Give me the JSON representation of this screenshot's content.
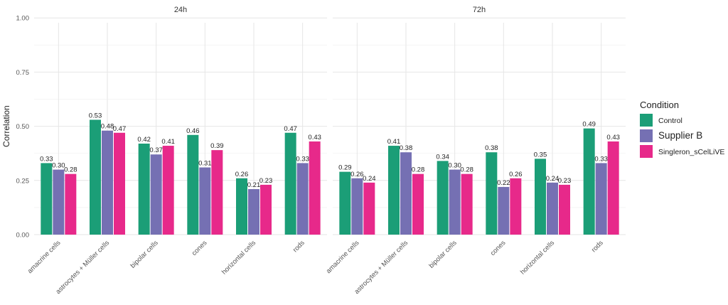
{
  "chart_data": {
    "type": "bar",
    "ylabel": "Correlation",
    "ylim": [
      0,
      1.05
    ],
    "yticks": [
      0.0,
      0.25,
      0.5,
      0.75,
      1.0
    ],
    "ytick_labels": [
      "0.00",
      "0.25",
      "0.50",
      "0.75",
      "1.00"
    ],
    "categories": [
      "amacrine cells",
      "astrocytes + Müller cells",
      "bipolar cells",
      "cones",
      "horizontal cells",
      "rods"
    ],
    "legend": {
      "title": "Condition",
      "entries": [
        "Control",
        "Supplier B",
        "Singleron_sCelLiVE"
      ]
    },
    "colors": [
      "#1b9e77",
      "#7570b3",
      "#e7298a"
    ],
    "panels": [
      {
        "title": "24h",
        "series": [
          {
            "name": "Control",
            "values": [
              0.33,
              0.53,
              0.42,
              0.46,
              0.26,
              0.47
            ]
          },
          {
            "name": "Supplier B",
            "values": [
              0.3,
              0.48,
              0.37,
              0.31,
              0.21,
              0.33
            ]
          },
          {
            "name": "Singleron_sCelLiVE",
            "values": [
              0.28,
              0.47,
              0.41,
              0.39,
              0.23,
              0.43
            ]
          }
        ]
      },
      {
        "title": "72h",
        "series": [
          {
            "name": "Control",
            "values": [
              0.29,
              0.41,
              0.34,
              0.38,
              0.35,
              0.49
            ]
          },
          {
            "name": "Supplier B",
            "values": [
              0.26,
              0.38,
              0.3,
              0.22,
              0.24,
              0.33
            ]
          },
          {
            "name": "Singleron_sCelLiVE",
            "values": [
              0.24,
              0.28,
              0.28,
              0.26,
              0.23,
              0.43
            ]
          }
        ]
      }
    ]
  }
}
